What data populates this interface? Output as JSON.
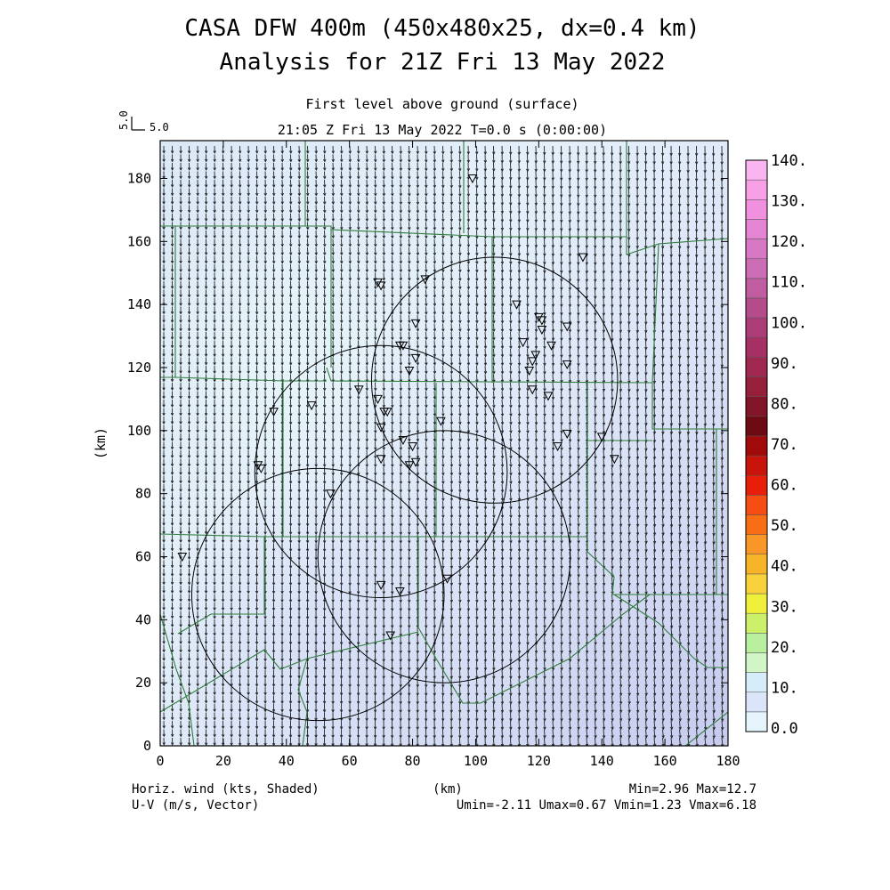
{
  "chart_data": {
    "type": "heatmap",
    "title_line1": "CASA DFW 400m (450x480x25, dx=0.4 km)",
    "title_line2": "Analysis for 21Z Fri 13 May 2022",
    "subtitle_line1": "First level above ground (surface)",
    "subtitle_line2": "21:05 Z Fri 13 May 2022    T=0.0 s (0:00:00)",
    "reference_vector": {
      "label_vertical": "5.0",
      "label_horizontal": "5.0"
    },
    "xlabel": "(km)",
    "ylabel": "(km)",
    "xlim": [
      0,
      180
    ],
    "ylim": [
      0,
      192
    ],
    "x_ticks": [
      "0",
      "20",
      "40",
      "60",
      "80",
      "100",
      "120",
      "140",
      "160",
      "180"
    ],
    "y_ticks": [
      "0",
      "20",
      "40",
      "60",
      "80",
      "100",
      "120",
      "140",
      "160",
      "180"
    ],
    "colorbar": {
      "labels": [
        "0.0",
        "10.",
        "20.",
        "30.",
        "40.",
        "50.",
        "60.",
        "70.",
        "80.",
        "90.",
        "100.",
        "110.",
        "120.",
        "130.",
        "140."
      ],
      "colors": [
        "#e6f5fb",
        "#dce4fa",
        "#d6ecfa",
        "#d2f5c8",
        "#b8f0a0",
        "#cdf06a",
        "#f0f03c",
        "#f8d23c",
        "#f8b428",
        "#f89628",
        "#f86e14",
        "#f54d14",
        "#e61e0a",
        "#c8140a",
        "#a00a0a",
        "#6e0a14",
        "#821428",
        "#96203c",
        "#a02850",
        "#a63064",
        "#aa3c78",
        "#b44c8c",
        "#c05ca0",
        "#cc6cb4",
        "#d878c4",
        "#e484d2",
        "#f090de",
        "#f8a0e6",
        "#fab4f0"
      ]
    },
    "field_stats": {
      "label_left_1": "Horiz. wind (kts, Shaded)",
      "label_left_2": "U-V (m/s, Vector)",
      "label_center": "(km)",
      "minmax": "Min=2.96 Max=12.7",
      "uv_range": "Umin=-2.11 Umax=0.67 Vmin=1.23 Vmax=6.18"
    },
    "radar_rings": [
      {
        "cx": 106,
        "cy": 116,
        "r": 39
      },
      {
        "cx": 70,
        "cy": 87,
        "r": 40
      },
      {
        "cx": 90,
        "cy": 60,
        "r": 40
      },
      {
        "cx": 50,
        "cy": 48,
        "r": 40
      }
    ],
    "stations": [
      [
        7,
        60
      ],
      [
        31,
        89
      ],
      [
        32,
        88
      ],
      [
        36,
        106
      ],
      [
        48,
        108
      ],
      [
        54,
        80
      ],
      [
        63,
        113
      ],
      [
        69,
        147
      ],
      [
        70,
        146
      ],
      [
        69,
        110
      ],
      [
        70,
        101
      ],
      [
        71,
        106
      ],
      [
        72,
        106
      ],
      [
        70,
        91
      ],
      [
        77,
        97
      ],
      [
        79,
        89
      ],
      [
        80,
        95
      ],
      [
        81,
        90
      ],
      [
        76,
        127
      ],
      [
        77,
        127
      ],
      [
        79,
        119
      ],
      [
        81,
        123
      ],
      [
        81,
        134
      ],
      [
        84,
        148
      ],
      [
        70,
        51
      ],
      [
        76,
        49
      ],
      [
        89,
        103
      ],
      [
        91,
        53
      ],
      [
        73,
        35
      ],
      [
        99,
        180
      ],
      [
        113,
        140
      ],
      [
        115,
        128
      ],
      [
        117,
        119
      ],
      [
        118,
        122
      ],
      [
        119,
        124
      ],
      [
        121,
        135
      ],
      [
        121,
        132
      ],
      [
        124,
        127
      ],
      [
        129,
        133
      ],
      [
        129,
        121
      ],
      [
        118,
        113
      ],
      [
        123,
        111
      ],
      [
        129,
        99
      ],
      [
        126,
        95
      ],
      [
        134,
        155
      ],
      [
        140,
        98
      ],
      [
        144,
        91
      ],
      [
        120,
        136
      ]
    ]
  }
}
